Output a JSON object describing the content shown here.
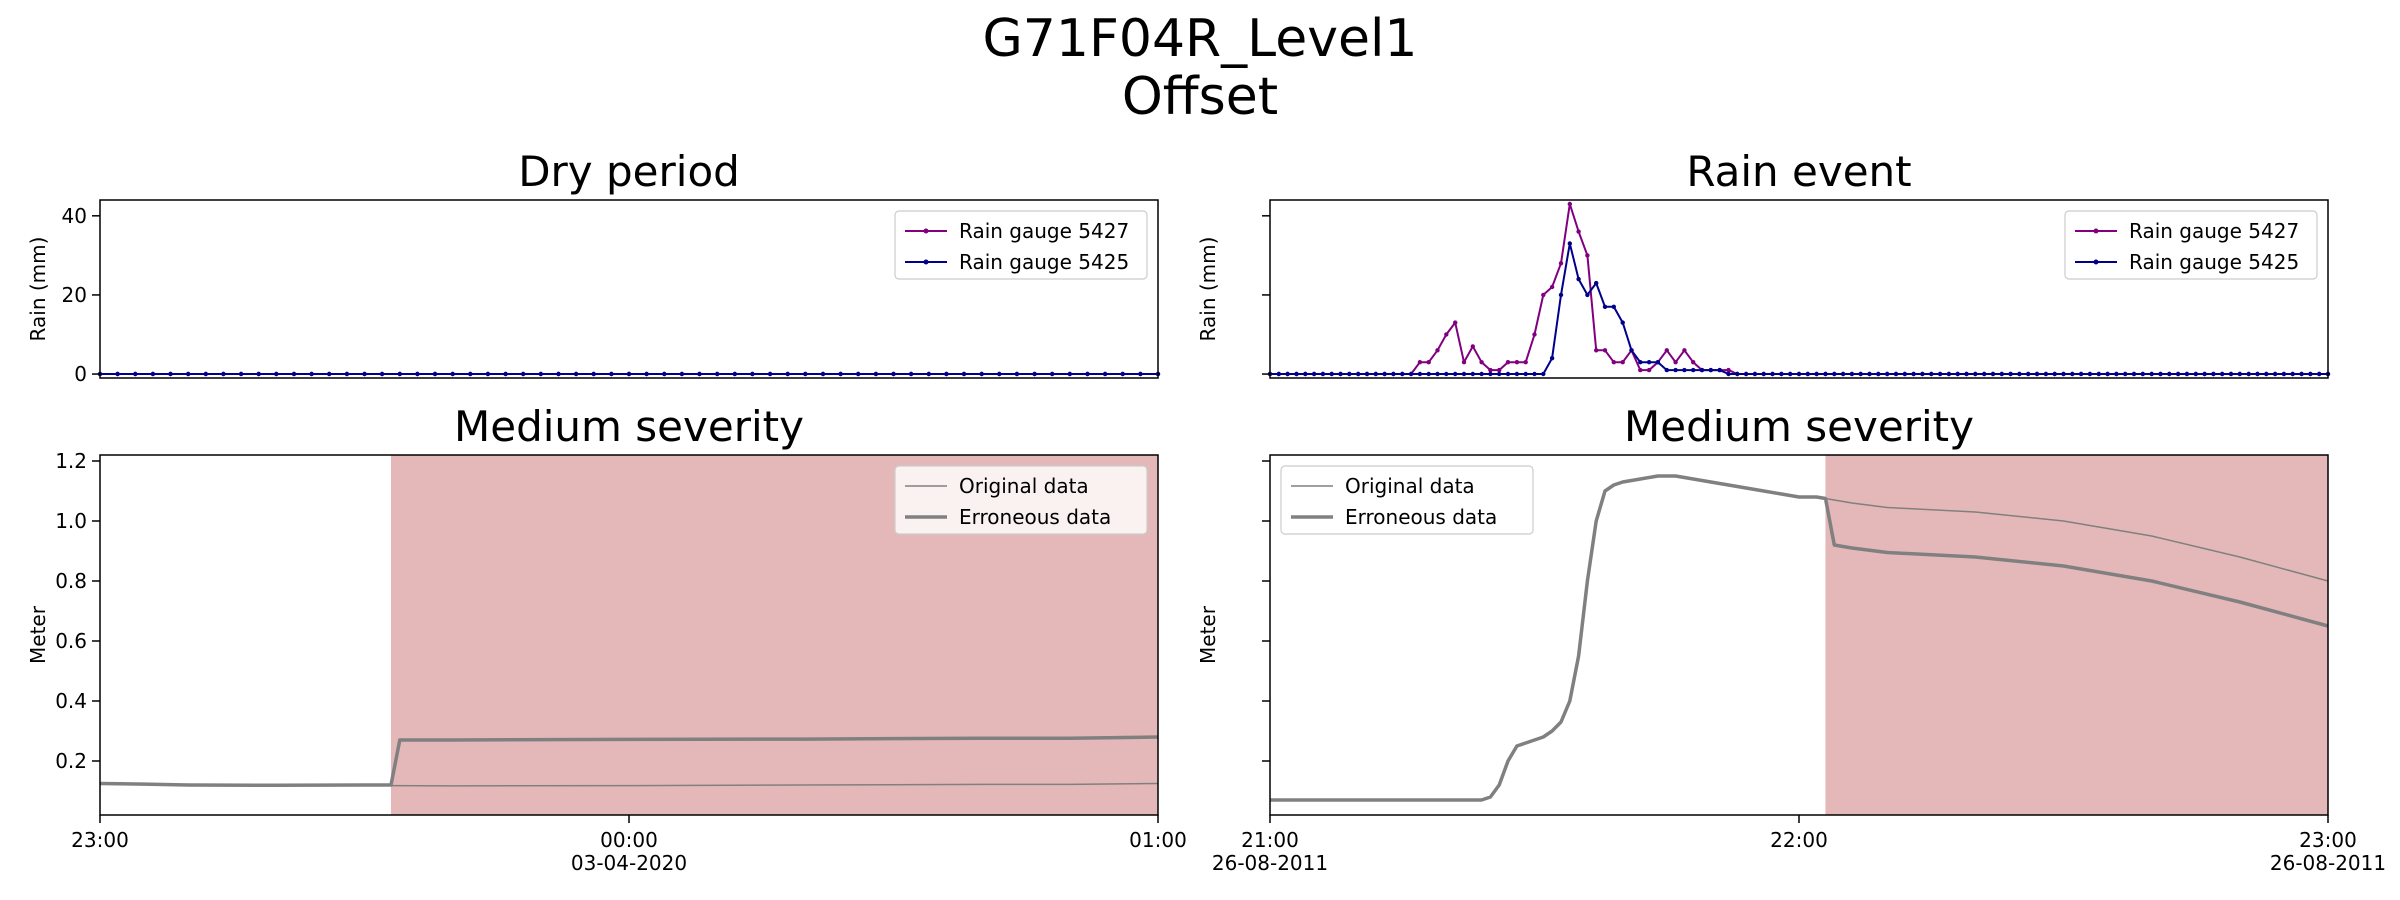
{
  "figure": {
    "title_line1": "G71F04R_Level1",
    "title_line2": "Offset"
  },
  "chart_data": [
    {
      "id": "dry_rain",
      "type": "line",
      "title": "Dry period",
      "ylabel": "Rain (mm)",
      "ylim": [
        -1,
        44
      ],
      "yticks": [
        0,
        20,
        40
      ],
      "xlim": [
        0,
        120
      ],
      "xticks": [],
      "grid": false,
      "legend": "upper right",
      "series": [
        {
          "name": "Rain gauge 5427",
          "color": "#800080",
          "marker": true,
          "points": [
            [
              0,
              0
            ],
            [
              120,
              0
            ]
          ],
          "fill_constant": {
            "value": 0,
            "step": 2
          }
        },
        {
          "name": "Rain gauge 5425",
          "color": "#00008b",
          "marker": true,
          "points": [
            [
              0,
              0
            ],
            [
              120,
              0
            ]
          ],
          "fill_constant": {
            "value": 0,
            "step": 2
          }
        }
      ]
    },
    {
      "id": "rain_event",
      "type": "line",
      "title": "Rain event",
      "ylabel": "Rain (mm)",
      "ylim": [
        -1,
        44
      ],
      "yticks": [
        0,
        20,
        40
      ],
      "show_ytick_labels": false,
      "xlim": [
        0,
        120
      ],
      "xticks": [],
      "grid": false,
      "legend": "upper right",
      "series": [
        {
          "name": "Rain gauge 5427",
          "color": "#800080",
          "marker": true,
          "points": [
            [
              0,
              0
            ],
            [
              16,
              0
            ],
            [
              17,
              3
            ],
            [
              18,
              3
            ],
            [
              19,
              6
            ],
            [
              20,
              10
            ],
            [
              21,
              13
            ],
            [
              22,
              3
            ],
            [
              23,
              7
            ],
            [
              24,
              3
            ],
            [
              25,
              1
            ],
            [
              26,
              1
            ],
            [
              27,
              3
            ],
            [
              28,
              3
            ],
            [
              29,
              3
            ],
            [
              30,
              10
            ],
            [
              31,
              20
            ],
            [
              32,
              22
            ],
            [
              33,
              28
            ],
            [
              34,
              43
            ],
            [
              35,
              36
            ],
            [
              36,
              30
            ],
            [
              37,
              6
            ],
            [
              38,
              6
            ],
            [
              39,
              3
            ],
            [
              40,
              3
            ],
            [
              41,
              6
            ],
            [
              42,
              1
            ],
            [
              43,
              1
            ],
            [
              44,
              3
            ],
            [
              45,
              6
            ],
            [
              46,
              3
            ],
            [
              47,
              6
            ],
            [
              48,
              3
            ],
            [
              49,
              1
            ],
            [
              50,
              1
            ],
            [
              51,
              1
            ],
            [
              52,
              1
            ],
            [
              53,
              0
            ],
            [
              120,
              0
            ]
          ],
          "fill_constant": {
            "value": 0,
            "step": 1
          }
        },
        {
          "name": "Rain gauge 5425",
          "color": "#00008b",
          "marker": true,
          "points": [
            [
              0,
              0
            ],
            [
              31,
              0
            ],
            [
              32,
              4
            ],
            [
              33,
              20
            ],
            [
              34,
              33
            ],
            [
              35,
              24
            ],
            [
              36,
              20
            ],
            [
              37,
              23
            ],
            [
              38,
              17
            ],
            [
              39,
              17
            ],
            [
              40,
              13
            ],
            [
              41,
              6
            ],
            [
              42,
              3
            ],
            [
              43,
              3
            ],
            [
              44,
              3
            ],
            [
              45,
              1
            ],
            [
              46,
              1
            ],
            [
              47,
              1
            ],
            [
              48,
              1
            ],
            [
              49,
              1
            ],
            [
              50,
              1
            ],
            [
              51,
              1
            ],
            [
              52,
              0
            ],
            [
              120,
              0
            ]
          ],
          "fill_constant": {
            "value": 0,
            "step": 1
          }
        }
      ]
    },
    {
      "id": "dry_level",
      "type": "line",
      "title": "Medium severity",
      "ylabel": "Meter",
      "ylim": [
        0.02,
        1.22
      ],
      "yticks": [
        0.2,
        0.4,
        0.6,
        0.8,
        1.0,
        1.2
      ],
      "ytick_labels": [
        "0.2",
        "0.4",
        "0.6",
        "0.8",
        "1.0",
        "1.2"
      ],
      "xlim": [
        0,
        120
      ],
      "xticks": [
        0,
        60,
        120
      ],
      "xtick_labels": [
        [
          "23:00"
        ],
        [
          "00:00",
          "03-04-2020"
        ],
        [
          "01:00"
        ]
      ],
      "grid": false,
      "legend": "upper right",
      "shaded_region": {
        "from": 33,
        "to": 120,
        "color": "#e4b8b8"
      },
      "series": [
        {
          "name": "Original data",
          "color": "#808080",
          "width": 1.5,
          "points": [
            [
              0,
              0.125
            ],
            [
              5,
              0.123
            ],
            [
              10,
              0.12
            ],
            [
              20,
              0.119
            ],
            [
              30,
              0.12
            ],
            [
              33,
              0.118
            ],
            [
              40,
              0.117
            ],
            [
              60,
              0.118
            ],
            [
              80,
              0.12
            ],
            [
              100,
              0.122
            ],
            [
              110,
              0.122
            ],
            [
              120,
              0.125
            ]
          ]
        },
        {
          "name": "Erroneous data",
          "color": "#808080",
          "width": 3.5,
          "points": [
            [
              0,
              0.125
            ],
            [
              5,
              0.123
            ],
            [
              10,
              0.12
            ],
            [
              20,
              0.119
            ],
            [
              30,
              0.12
            ],
            [
              33,
              0.12
            ],
            [
              34,
              0.27
            ],
            [
              40,
              0.27
            ],
            [
              60,
              0.272
            ],
            [
              80,
              0.273
            ],
            [
              100,
              0.276
            ],
            [
              110,
              0.276
            ],
            [
              120,
              0.28
            ]
          ]
        }
      ]
    },
    {
      "id": "event_level",
      "type": "line",
      "title": "Medium severity",
      "ylabel": "Meter",
      "ylim": [
        0.02,
        1.22
      ],
      "yticks": [
        0.2,
        0.4,
        0.6,
        0.8,
        1.0,
        1.2
      ],
      "show_ytick_labels": false,
      "xlim": [
        0,
        120
      ],
      "xticks": [
        0,
        60,
        120
      ],
      "xtick_labels": [
        [
          "21:00",
          "26-08-2011"
        ],
        [
          "22:00"
        ],
        [
          "23:00",
          "26-08-2011"
        ]
      ],
      "grid": false,
      "legend": "upper left",
      "shaded_region": {
        "from": 63,
        "to": 120,
        "color": "#e4b8b8"
      },
      "series": [
        {
          "name": "Original data",
          "color": "#808080",
          "width": 1.5,
          "points": [
            [
              0,
              0.07
            ],
            [
              10,
              0.07
            ],
            [
              20,
              0.07
            ],
            [
              24,
              0.07
            ],
            [
              25,
              0.08
            ],
            [
              26,
              0.12
            ],
            [
              27,
              0.2
            ],
            [
              28,
              0.25
            ],
            [
              29,
              0.26
            ],
            [
              30,
              0.27
            ],
            [
              31,
              0.28
            ],
            [
              32,
              0.3
            ],
            [
              33,
              0.33
            ],
            [
              34,
              0.4
            ],
            [
              35,
              0.55
            ],
            [
              36,
              0.8
            ],
            [
              37,
              1.0
            ],
            [
              38,
              1.1
            ],
            [
              39,
              1.12
            ],
            [
              40,
              1.13
            ],
            [
              42,
              1.14
            ],
            [
              44,
              1.15
            ],
            [
              46,
              1.15
            ],
            [
              48,
              1.14
            ],
            [
              50,
              1.13
            ],
            [
              52,
              1.12
            ],
            [
              54,
              1.11
            ],
            [
              56,
              1.1
            ],
            [
              58,
              1.09
            ],
            [
              60,
              1.08
            ],
            [
              62,
              1.08
            ],
            [
              63,
              1.075
            ],
            [
              66,
              1.06
            ],
            [
              70,
              1.045
            ],
            [
              80,
              1.03
            ],
            [
              90,
              1.0
            ],
            [
              100,
              0.95
            ],
            [
              110,
              0.88
            ],
            [
              120,
              0.8
            ]
          ]
        },
        {
          "name": "Erroneous data",
          "color": "#808080",
          "width": 3.5,
          "points": [
            [
              0,
              0.07
            ],
            [
              10,
              0.07
            ],
            [
              20,
              0.07
            ],
            [
              24,
              0.07
            ],
            [
              25,
              0.08
            ],
            [
              26,
              0.12
            ],
            [
              27,
              0.2
            ],
            [
              28,
              0.25
            ],
            [
              29,
              0.26
            ],
            [
              30,
              0.27
            ],
            [
              31,
              0.28
            ],
            [
              32,
              0.3
            ],
            [
              33,
              0.33
            ],
            [
              34,
              0.4
            ],
            [
              35,
              0.55
            ],
            [
              36,
              0.8
            ],
            [
              37,
              1.0
            ],
            [
              38,
              1.1
            ],
            [
              39,
              1.12
            ],
            [
              40,
              1.13
            ],
            [
              42,
              1.14
            ],
            [
              44,
              1.15
            ],
            [
              46,
              1.15
            ],
            [
              48,
              1.14
            ],
            [
              50,
              1.13
            ],
            [
              52,
              1.12
            ],
            [
              54,
              1.11
            ],
            [
              56,
              1.1
            ],
            [
              58,
              1.09
            ],
            [
              60,
              1.08
            ],
            [
              62,
              1.08
            ],
            [
              63,
              1.075
            ],
            [
              64,
              0.92
            ],
            [
              66,
              0.91
            ],
            [
              70,
              0.895
            ],
            [
              80,
              0.88
            ],
            [
              90,
              0.85
            ],
            [
              100,
              0.8
            ],
            [
              110,
              0.73
            ],
            [
              120,
              0.65
            ]
          ]
        }
      ]
    }
  ]
}
